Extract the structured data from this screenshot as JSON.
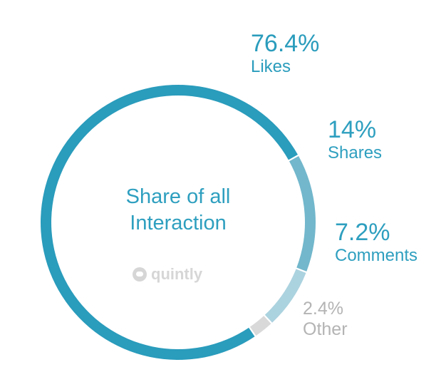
{
  "chart_data": {
    "type": "pie",
    "style": "donut",
    "center_text": [
      "Share of all",
      "Interaction"
    ],
    "categories": [
      "Likes",
      "Shares",
      "Comments",
      "Other"
    ],
    "values": [
      76.4,
      14,
      7.2,
      2.4
    ],
    "value_labels": [
      "76.4%",
      "14%",
      "7.2%",
      "2.4%"
    ],
    "colors": [
      "#2a9cbc",
      "#72b7cc",
      "#abd2df",
      "#d9d9d9"
    ],
    "start": "bottom-right, clockwise"
  },
  "watermark": {
    "text": "quintly",
    "icon": "quintly-logo-icon"
  }
}
